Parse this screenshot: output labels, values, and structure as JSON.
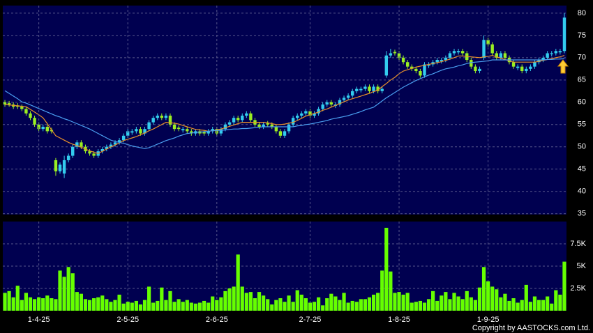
{
  "chart_data": [
    {
      "type": "candlestick",
      "up_color": "#33ccee",
      "down_color": "#99ee22",
      "ylim": [
        34.8,
        81.7
      ],
      "yticks": [
        35,
        40,
        45,
        50,
        55,
        60,
        65,
        70,
        75,
        80
      ],
      "grid": true,
      "open": [
        60,
        59.8,
        59.5,
        59.3,
        59,
        58.5,
        57.5,
        56.5,
        55,
        54,
        54.5,
        53.8,
        47,
        44.5,
        44,
        47,
        48,
        50,
        51,
        50,
        49,
        48.5,
        48,
        49,
        49.5,
        50,
        50.5,
        51,
        51.5,
        52.5,
        53.2,
        53.5,
        54,
        53,
        54,
        55.5,
        56.5,
        57,
        56.5,
        57,
        55,
        54.3,
        53.7,
        54,
        53.5,
        53,
        53.5,
        53.3,
        53,
        53.5,
        54,
        53,
        54,
        55,
        55.5,
        56.5,
        56,
        57,
        57.5,
        56,
        55,
        54.5,
        55.3,
        55,
        54.5,
        53.5,
        52.5,
        53.5,
        55,
        56.5,
        57,
        57.5,
        58,
        57,
        57.5,
        58.5,
        59.5,
        60,
        59.2,
        59.5,
        60.5,
        61,
        61.5,
        62.5,
        62.7,
        63,
        63.5,
        62.5,
        63.5,
        62.5,
        66,
        70.5,
        71.3,
        71,
        70,
        69,
        68,
        67.5,
        67,
        66,
        68.2,
        68.5,
        69,
        69.2,
        69.5,
        70,
        71,
        71.2,
        71.5,
        71,
        69.5,
        68,
        67,
        70,
        74,
        73,
        71,
        70,
        71,
        70,
        69,
        67.7,
        68,
        67,
        67.5,
        68,
        69,
        69.5,
        70,
        70.8,
        71,
        71.2,
        71.5
      ],
      "high": [
        60.5,
        60.3,
        60,
        59.8,
        59.5,
        59,
        58,
        57,
        55.5,
        55,
        55,
        54.3,
        47.5,
        46.5,
        48,
        48.5,
        50.5,
        51.5,
        51.5,
        50.5,
        49.5,
        49,
        49.5,
        50,
        50.5,
        51,
        51.5,
        52,
        53,
        54,
        54,
        54.5,
        54.5,
        54.5,
        56,
        57,
        57.5,
        57.5,
        57.5,
        57.5,
        55.5,
        54.8,
        54.5,
        54.5,
        54,
        54,
        54,
        53.8,
        54,
        54.5,
        54.5,
        54.5,
        55.5,
        56,
        57,
        57,
        57.5,
        58,
        58,
        56.5,
        55.5,
        55.5,
        55.8,
        55.5,
        55,
        54,
        54,
        55.5,
        57,
        57.5,
        58,
        58.5,
        58.5,
        58,
        59,
        60,
        60.5,
        60.5,
        60,
        61,
        61.5,
        62,
        63,
        63.5,
        63.5,
        64,
        64,
        64,
        64,
        63.5,
        71.5,
        72,
        71.8,
        71.5,
        70.5,
        69.5,
        68.5,
        68,
        67.5,
        69,
        69,
        69.5,
        70,
        70,
        70.5,
        71.5,
        72,
        72,
        72,
        71.5,
        70,
        68.5,
        68,
        75,
        74.5,
        73.5,
        71.5,
        71.5,
        71.5,
        70.5,
        69.5,
        68.5,
        68.5,
        68,
        68.5,
        69.5,
        70,
        70.5,
        71.5,
        71.5,
        72,
        72,
        80
      ],
      "low": [
        59,
        59,
        58.5,
        58.5,
        58,
        57,
        56,
        54.5,
        53.5,
        53.5,
        53,
        53,
        43.5,
        44,
        43,
        46.5,
        47.5,
        49.5,
        49.5,
        48.5,
        48,
        47.5,
        47.5,
        48.5,
        49,
        49.5,
        50,
        50.5,
        51,
        52,
        52.7,
        53,
        52.5,
        52.5,
        53.5,
        55,
        56,
        56,
        56,
        54.5,
        53.5,
        53.5,
        53.2,
        53,
        52.5,
        52.5,
        52.5,
        52.5,
        52.5,
        53,
        52.5,
        52.5,
        53.5,
        54.5,
        55,
        55.5,
        55.5,
        56.5,
        55.5,
        54.5,
        54,
        54,
        54.5,
        54,
        53,
        52,
        52,
        53,
        54.5,
        56,
        56.5,
        57,
        56.5,
        56.5,
        57,
        58,
        59,
        59,
        58.7,
        59,
        60,
        60.5,
        61,
        62,
        62.2,
        62.5,
        62,
        62,
        62,
        62,
        65.5,
        70,
        70.5,
        69.5,
        68.5,
        67.5,
        67,
        66.5,
        65.5,
        65.5,
        67.7,
        68,
        68.5,
        68.7,
        69,
        69.5,
        70.5,
        70.7,
        70.5,
        69,
        67.5,
        66.5,
        66.5,
        69.5,
        72.5,
        70.5,
        69.5,
        69.5,
        69.5,
        68.5,
        67.5,
        67.2,
        66.5,
        66.5,
        67,
        67.5,
        68.5,
        69,
        69.5,
        70.3,
        70.5,
        70.7,
        71
      ],
      "close": [
        59.5,
        59.5,
        59,
        59,
        58.5,
        57.5,
        56.5,
        55,
        54,
        54.5,
        53.5,
        53.5,
        44.5,
        46,
        47,
        48,
        50,
        51,
        50,
        49,
        48.5,
        48,
        49,
        49.5,
        50,
        50.5,
        51,
        51.5,
        52.5,
        53.5,
        53.5,
        54,
        53,
        54,
        55.5,
        56.5,
        57,
        56.5,
        57,
        55,
        54,
        54,
        54,
        53.5,
        53,
        53.5,
        53,
        53,
        53.5,
        54,
        53,
        54,
        55,
        55.5,
        56.5,
        56,
        57,
        57.5,
        56,
        55,
        54.5,
        55,
        55,
        54.5,
        53.5,
        52.5,
        53.5,
        55,
        56.5,
        57,
        57.5,
        58,
        57,
        57.5,
        58.5,
        59.5,
        60,
        59.5,
        59.5,
        60.5,
        61,
        61.5,
        62.5,
        63,
        63,
        63.5,
        62.5,
        63.5,
        62.5,
        63,
        70.5,
        71,
        71,
        70,
        69,
        68,
        67.5,
        67,
        66,
        68.5,
        68.5,
        69,
        69.5,
        69.5,
        70,
        71,
        71.5,
        71.5,
        71,
        69.5,
        68,
        67,
        67.5,
        74,
        73,
        71,
        70,
        71,
        70,
        69,
        68,
        68,
        67,
        67.5,
        68,
        69,
        69.5,
        70,
        71,
        71,
        71.5,
        71.5,
        79
      ],
      "series": [
        {
          "color": "#e8902a",
          "values": [
            59.5,
            59.4,
            59.3,
            59.2,
            59.1,
            59,
            58.4,
            57.8,
            57.2,
            56.5,
            55.2,
            53.8,
            52.5,
            52,
            51.5,
            51,
            50.6,
            50.3,
            49.9,
            49.5,
            49.1,
            48.8,
            48.5,
            49,
            49.5,
            50,
            50.4,
            50.9,
            51.4,
            51.7,
            52,
            52.3,
            52.7,
            53.1,
            53.6,
            54,
            54.5,
            55,
            55.5,
            55.4,
            55.3,
            55.1,
            54.8,
            54.5,
            54.2,
            53.9,
            53.8,
            53.7,
            53.5,
            53.6,
            53.8,
            54,
            54.3,
            54.6,
            54.9,
            55.2,
            55.5,
            55.5,
            55.5,
            55.5,
            55.5,
            55.5,
            55.4,
            55.2,
            55,
            55,
            55.1,
            55.3,
            55.5,
            55.9,
            56.4,
            56.9,
            57.2,
            57.5,
            57.8,
            58.2,
            58.5,
            58.9,
            59.3,
            59.7,
            60.1,
            60.5,
            60.8,
            61.1,
            61.4,
            61.7,
            62,
            62.4,
            62.7,
            63.5,
            64.2,
            65,
            65.6,
            66.4,
            67,
            67.3,
            67.6,
            67.9,
            68.1,
            68.3,
            68.5,
            68.7,
            68.9,
            69.1,
            69.4,
            69.7,
            70,
            70.4,
            70.4,
            70.3,
            70.2,
            70.1,
            70,
            70.2,
            70.3,
            70.5,
            70.2,
            69.9,
            69.6,
            69.3,
            69,
            69,
            69,
            69,
            69,
            69,
            69.2,
            69.4,
            69.6,
            69.8,
            70,
            70.2,
            70.5
          ]
        },
        {
          "color": "#4a9ff0",
          "values": [
            62.6,
            62,
            61.4,
            60.8,
            60.1,
            59.8,
            59.4,
            59,
            58.6,
            58.2,
            57.8,
            57.4,
            57,
            56.7,
            56.3,
            56,
            55.6,
            55.2,
            54.8,
            54.4,
            54,
            53.5,
            53,
            52.5,
            52,
            51.5,
            51.2,
            51,
            50.8,
            50.5,
            50.2,
            50,
            49.8,
            49.6,
            49.8,
            50.2,
            50.6,
            51,
            51.4,
            51.7,
            52,
            52.4,
            52.7,
            53,
            53.1,
            53.2,
            53.3,
            53.4,
            53.5,
            53.6,
            53.7,
            53.7,
            53.8,
            53.9,
            54,
            54,
            54.1,
            54.1,
            54.2,
            54.3,
            54.4,
            54.5,
            54.5,
            54.5,
            54.5,
            54.5,
            54.5,
            54.5,
            54.5,
            54.7,
            54.8,
            55,
            55.1,
            55.3,
            55.5,
            55.7,
            55.9,
            56.2,
            56.4,
            56.6,
            56.8,
            57,
            57.3,
            57.6,
            57.9,
            58.3,
            58.6,
            58.9,
            59.6,
            60.3,
            61,
            61.6,
            62.2,
            62.8,
            63.4,
            63.9,
            64.4,
            64.9,
            65.3,
            65.7,
            66.1,
            66.4,
            66.8,
            67.2,
            67.5,
            67.7,
            67.9,
            68.2,
            68.4,
            68.7,
            68.9,
            69,
            69.1,
            69.2,
            69.3,
            69.5,
            69.5,
            69.5,
            69.5,
            69.5,
            69.5,
            69.5,
            69.5,
            69.5,
            69.5,
            69.5,
            69.5,
            69.5,
            69.6,
            69.6,
            69.7,
            69.7,
            69.8
          ]
        }
      ]
    },
    {
      "type": "bar",
      "color": "#66ff00",
      "ylim": [
        0,
        10000
      ],
      "grid": true,
      "yticks": [
        {
          "value": 2500,
          "label": "2.5K"
        },
        {
          "value": 5000,
          "label": "5K"
        },
        {
          "value": 7500,
          "label": "7.5K"
        }
      ],
      "categories": [
        null,
        null,
        null,
        null,
        null,
        null,
        null,
        null,
        "1-4-25",
        null,
        null,
        null,
        null,
        null,
        null,
        null,
        null,
        null,
        null,
        null,
        null,
        null,
        null,
        null,
        null,
        null,
        null,
        null,
        null,
        "2-5-25",
        null,
        null,
        null,
        null,
        null,
        null,
        null,
        null,
        null,
        null,
        null,
        null,
        null,
        null,
        null,
        null,
        null,
        null,
        null,
        null,
        "2-6-25",
        null,
        null,
        null,
        null,
        null,
        null,
        null,
        null,
        null,
        null,
        null,
        null,
        null,
        null,
        null,
        null,
        null,
        null,
        null,
        null,
        null,
        "2-7-25",
        null,
        null,
        null,
        null,
        null,
        null,
        null,
        null,
        null,
        null,
        null,
        null,
        null,
        null,
        null,
        null,
        null,
        null,
        null,
        null,
        "1-8-25",
        null,
        null,
        null,
        null,
        null,
        null,
        null,
        null,
        null,
        null,
        null,
        null,
        null,
        null,
        null,
        null,
        null,
        null,
        null,
        null,
        "1-9-25",
        null,
        null,
        null,
        null,
        null,
        null,
        null,
        null,
        null,
        null,
        null,
        null,
        null,
        null,
        null,
        null,
        null,
        null
      ],
      "values": [
        2000,
        2200,
        1500,
        2800,
        1200,
        2000,
        1500,
        1300,
        1500,
        1400,
        1700,
        1400,
        1300,
        4500,
        3800,
        4900,
        4200,
        2100,
        1900,
        1300,
        1200,
        1400,
        1500,
        1700,
        1300,
        1000,
        1200,
        1800,
        800,
        1000,
        900,
        1100,
        700,
        1200,
        2700,
        900,
        1100,
        2600,
        1200,
        2200,
        1000,
        1300,
        1000,
        1200,
        900,
        800,
        900,
        1100,
        900,
        1600,
        1200,
        1500,
        2200,
        2500,
        2700,
        6300,
        2700,
        2000,
        2100,
        1400,
        2100,
        1700,
        1300,
        700,
        1200,
        1400,
        1000,
        1700,
        1000,
        2300,
        1800,
        1400,
        900,
        1000,
        1500,
        600,
        1400,
        1900,
        1600,
        1200,
        2000,
        900,
        1100,
        1000,
        1300,
        1300,
        1500,
        1800,
        2000,
        4500,
        9300,
        4400,
        2000,
        2100,
        1800,
        2000,
        900,
        1000,
        1100,
        900,
        1300,
        2200,
        1100,
        1700,
        2100,
        1300,
        2000,
        1600,
        1300,
        2200,
        1500,
        1200,
        2600,
        4900,
        3300,
        2700,
        2400,
        1500,
        1900,
        1100,
        1400,
        900,
        1200,
        2900,
        1000,
        1600,
        1200,
        1200,
        1600,
        800,
        2300,
        1800,
        5500
      ]
    }
  ],
  "copyright": "Copyright by AASTOCKS.com Ltd."
}
